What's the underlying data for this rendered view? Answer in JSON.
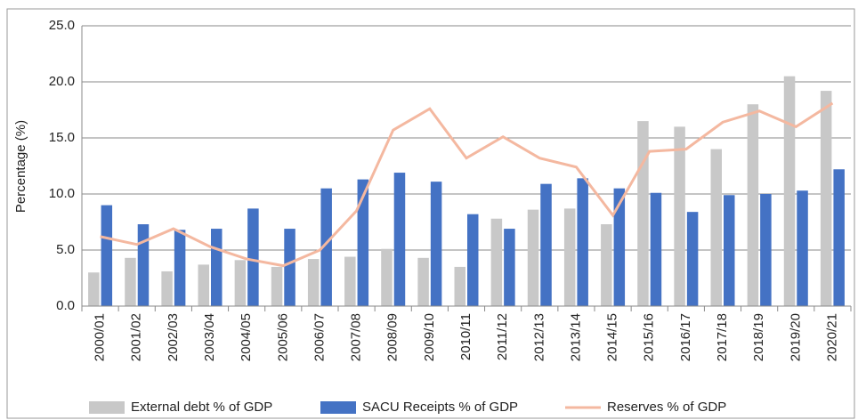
{
  "chart_data": {
    "type": "bar",
    "y_label": "Percentage (%)",
    "categories": [
      "2000/01",
      "2001/02",
      "2002/03",
      "2003/04",
      "2004/05",
      "2005/06",
      "2006/07",
      "2007/08",
      "2008/09",
      "2009/10",
      "2010/11",
      "2011/12",
      "2012/13",
      "2013/14",
      "2014/15",
      "2015/16",
      "2016/17",
      "2017/18",
      "2018/19",
      "2019/20",
      "2020/21"
    ],
    "series": [
      {
        "name": "External debt % of GDP",
        "type": "bar",
        "color": "#c8c8c8",
        "values": [
          3.0,
          4.3,
          3.1,
          3.7,
          4.1,
          3.5,
          4.2,
          4.4,
          5.1,
          4.3,
          3.5,
          7.8,
          8.6,
          8.7,
          7.3,
          16.5,
          16.0,
          14.0,
          18.0,
          20.5,
          19.2
        ]
      },
      {
        "name": "SACU Receipts % of GDP",
        "type": "bar",
        "color": "#4472c4",
        "values": [
          9.0,
          7.3,
          6.8,
          6.9,
          8.7,
          6.9,
          10.5,
          11.3,
          11.9,
          11.1,
          8.2,
          6.9,
          10.9,
          11.4,
          10.5,
          10.1,
          8.4,
          9.9,
          10.0,
          10.3,
          12.2
        ]
      },
      {
        "name": "Reserves % of GDP",
        "type": "line",
        "color": "#f4b8a0",
        "values": [
          6.2,
          5.5,
          6.9,
          5.3,
          4.2,
          3.6,
          5.0,
          8.5,
          15.7,
          17.6,
          13.2,
          15.1,
          13.2,
          12.4,
          8.1,
          13.8,
          14.0,
          16.4,
          17.4,
          16.0,
          18.1
        ]
      }
    ],
    "ylim": [
      0,
      25
    ],
    "yticks": [
      {
        "value": 0,
        "label": "0.0"
      },
      {
        "value": 5,
        "label": "5.0"
      },
      {
        "value": 10,
        "label": "10.0"
      },
      {
        "value": 15,
        "label": "15.0"
      },
      {
        "value": 20,
        "label": "20.0"
      },
      {
        "value": 25,
        "label": "25.0"
      }
    ],
    "grid": true,
    "legend": "bottom"
  }
}
